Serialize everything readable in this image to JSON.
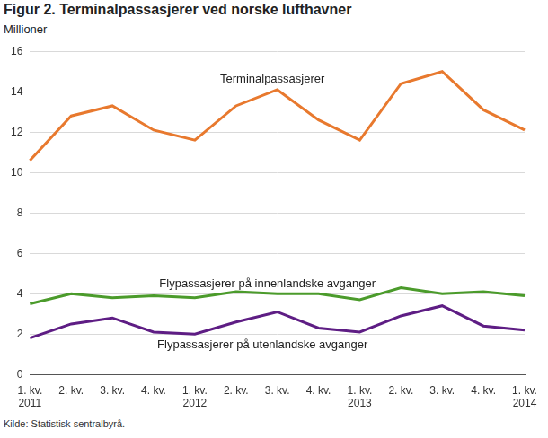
{
  "chart_data": {
    "type": "line",
    "title": "Figur 2. Terminalpassasjerer ved norske lufthavner",
    "y_label": "Millioner",
    "source": "Kilde: Statistisk sentralbyrå.",
    "categories": [
      "1. kv.\n2011",
      "2. kv.",
      "3. kv.",
      "4. kv.",
      "1. kv.\n2012",
      "2. kv.",
      "3. kv.",
      "4. kv.",
      "1. kv.\n2013",
      "2. kv.",
      "3. kv.",
      "4. kv.",
      "1. kv.\n2014"
    ],
    "series": [
      {
        "name": "Terminalpassasjerer",
        "color": "#e8792e",
        "values": [
          10.6,
          12.8,
          13.3,
          12.1,
          11.6,
          13.3,
          14.1,
          12.6,
          11.6,
          14.4,
          15.0,
          13.1,
          12.1
        ]
      },
      {
        "name": "Flypassasjerer på innenlandske avganger",
        "color": "#4b9b2b",
        "values": [
          3.5,
          4.0,
          3.8,
          3.9,
          3.8,
          4.1,
          4.0,
          4.0,
          3.7,
          4.3,
          4.0,
          4.1,
          3.9
        ]
      },
      {
        "name": "Flypassasjerer på utenlandske avganger",
        "color": "#5e1d84",
        "values": [
          1.8,
          2.5,
          2.8,
          2.1,
          2.0,
          2.6,
          3.1,
          2.3,
          2.1,
          2.9,
          3.4,
          2.4,
          2.2
        ]
      }
    ],
    "ylim": [
      0,
      16
    ],
    "yticks": [
      0,
      2,
      4,
      6,
      8,
      10,
      12,
      14,
      16
    ],
    "grid": true
  }
}
